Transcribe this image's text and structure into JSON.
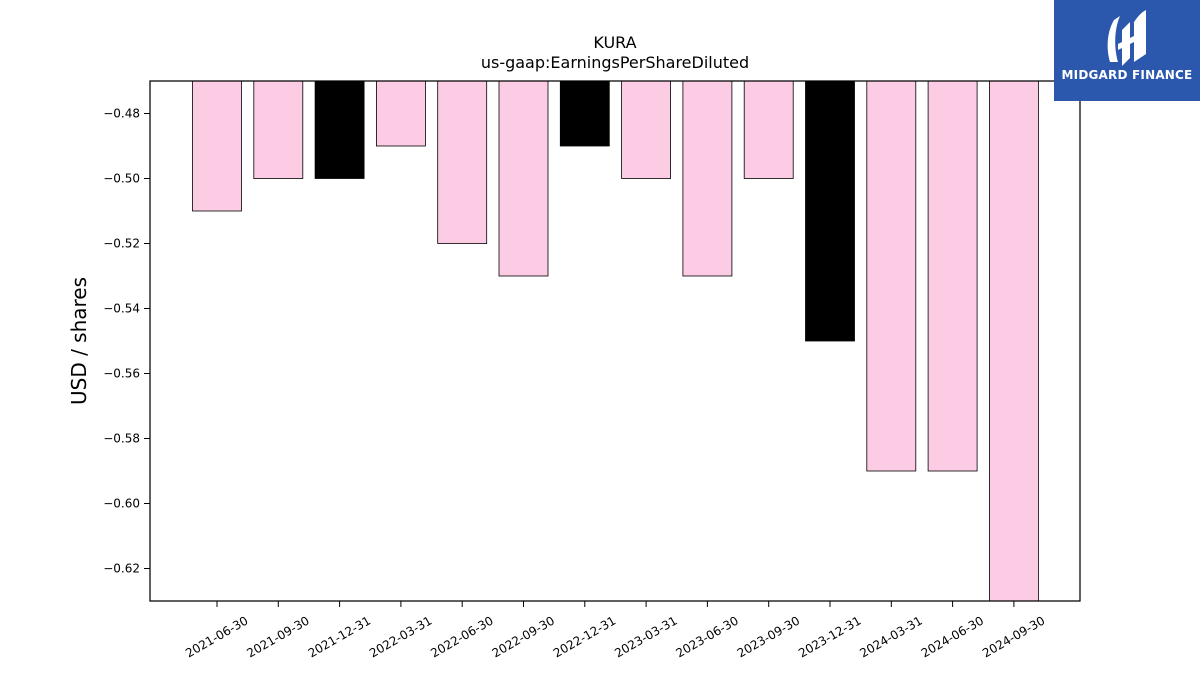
{
  "brand": {
    "name": "MIDGARD FINANCE",
    "background": "#2b58ad"
  },
  "chart_data": {
    "type": "bar",
    "title": "KURA",
    "subtitle": "us-gaap:EarningsPerShareDiluted",
    "ylabel": "USD / shares",
    "xlabel": "",
    "categories": [
      "2021-06-30",
      "2021-09-30",
      "2021-12-31",
      "2022-03-31",
      "2022-06-30",
      "2022-09-30",
      "2022-12-31",
      "2023-03-31",
      "2023-06-30",
      "2023-09-30",
      "2023-12-31",
      "2024-03-31",
      "2024-06-30",
      "2024-09-30"
    ],
    "values": [
      -0.51,
      -0.5,
      -0.5,
      -0.49,
      -0.52,
      -0.53,
      -0.49,
      -0.5,
      -0.53,
      -0.5,
      -0.55,
      -0.59,
      -0.59,
      -0.63
    ],
    "highlight": [
      false,
      false,
      true,
      false,
      false,
      false,
      true,
      false,
      false,
      false,
      true,
      false,
      false,
      false
    ],
    "colors": {
      "normal": "#fccbe4",
      "highlight": "#000000",
      "edge": "#000000"
    },
    "ylim": [
      -0.63,
      -0.47
    ],
    "yticks": [
      -0.48,
      -0.5,
      -0.52,
      -0.54,
      -0.56,
      -0.58,
      -0.6,
      -0.62
    ],
    "ytick_labels": [
      "−0.48",
      "−0.50",
      "−0.52",
      "−0.54",
      "−0.56",
      "−0.58",
      "−0.60",
      "−0.62"
    ],
    "grid": false,
    "legend": "none"
  }
}
